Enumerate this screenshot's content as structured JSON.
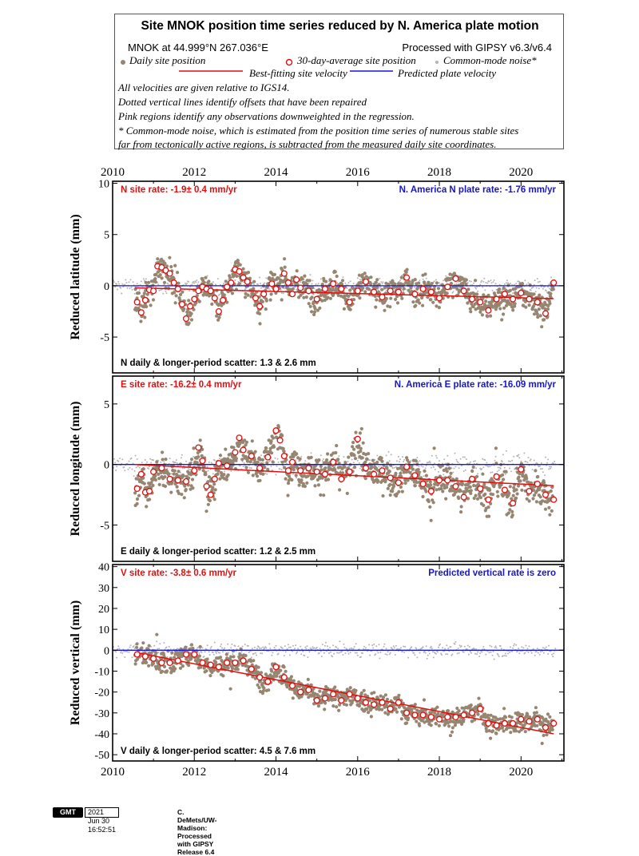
{
  "header": {
    "title": "Site MNOK position time series reduced by N. America plate motion",
    "site_line": "MNOK at 44.999°N 267.036°E",
    "processed_line": "Processed with GIPSY v6.3/v6.4",
    "legend_daily": "Daily site position",
    "legend_avg": "30-day-average site position",
    "legend_cm": "Common-mode noise*",
    "legend_best": "Best-fitting site velocity",
    "legend_pred": "Predicted plate velocity",
    "notes": [
      "All velocities are given relative to IGS14.",
      "Dotted vertical lines identify offsets that have been repaired",
      "Pink regions identify any observations downweighted in the regression.",
      "* Common-mode noise, which is estimated from the position time series of numerous stable sites",
      "far from tectonically active regions, is subtracted from the measured daily site coordinates."
    ]
  },
  "colors": {
    "daily": "#968671",
    "avg_fill": "#ffffff",
    "avg_stroke": "#e01010",
    "common_mode": "#b4b4b4",
    "best_fit": "#e01010",
    "predicted": "#1515e0",
    "site_rate_text": "#e01010",
    "plate_rate_text": "#1515d0"
  },
  "footer": {
    "logo": "GMT",
    "date": "2021 Jun 30 16:52:51",
    "credit": "C. DeMets/UW-Madison: Processed with GIPSY Release 6.4"
  },
  "chart_data": [
    {
      "type": "scatter",
      "component": "N",
      "ylabel": "Reduced latitude (mm)",
      "ylim": [
        -8.5,
        10.2
      ],
      "yticks": [
        10,
        5,
        0,
        -5
      ],
      "xlim": [
        2010,
        2021.05
      ],
      "xticks": [
        2010,
        2012,
        2014,
        2016,
        2018,
        2020
      ],
      "site_rate": "N site rate:  -1.9± 0.4 mm/yr",
      "plate_rate": "N. America N plate rate: -1.76 mm/yr",
      "scatter": "N daily & longer-period scatter:   1.3 &   2.6 mm",
      "data_start": 2010.55,
      "data_end": 2020.8,
      "best_fit": [
        [
          2010.55,
          -0.2
        ],
        [
          2020.8,
          -1.25
        ]
      ],
      "predicted": [
        [
          2010,
          0
        ],
        [
          2021.05,
          0
        ]
      ],
      "avg_30day": [
        [
          2010.6,
          -1.6
        ],
        [
          2010.7,
          -2.6
        ],
        [
          2010.8,
          -1.4
        ],
        [
          2010.9,
          -0.4
        ],
        [
          2011.0,
          -0.5
        ],
        [
          2011.1,
          1.9
        ],
        [
          2011.2,
          1.8
        ],
        [
          2011.3,
          1.5
        ],
        [
          2011.4,
          1.2
        ],
        [
          2011.5,
          0.3
        ],
        [
          2011.6,
          -0.3
        ],
        [
          2011.7,
          -1.8
        ],
        [
          2011.8,
          -3.2
        ],
        [
          2011.9,
          -2.0
        ],
        [
          2012.0,
          -1.3
        ],
        [
          2012.1,
          -0.5
        ],
        [
          2012.2,
          -0.1
        ],
        [
          2012.3,
          -0.3
        ],
        [
          2012.4,
          -0.5
        ],
        [
          2012.5,
          -1.2
        ],
        [
          2012.6,
          -2.5
        ],
        [
          2012.7,
          -1.4
        ],
        [
          2012.8,
          -0.1
        ],
        [
          2012.9,
          0.3
        ],
        [
          2013.0,
          1.6
        ],
        [
          2013.1,
          1.4
        ],
        [
          2013.2,
          0.8
        ],
        [
          2013.3,
          0.4
        ],
        [
          2013.5,
          -1.2
        ],
        [
          2013.6,
          -2.0
        ],
        [
          2013.7,
          -0.8
        ],
        [
          2013.9,
          0.2
        ],
        [
          2014.0,
          -0.3
        ],
        [
          2014.2,
          1.2
        ],
        [
          2014.3,
          0.3
        ],
        [
          2014.4,
          -0.8
        ],
        [
          2014.5,
          0.6
        ],
        [
          2014.6,
          -0.2
        ],
        [
          2014.8,
          -0.5
        ],
        [
          2015.0,
          -1.3
        ],
        [
          2015.2,
          -0.3
        ],
        [
          2015.4,
          0.2
        ],
        [
          2015.6,
          -0.3
        ],
        [
          2015.8,
          -1.6
        ],
        [
          2016.0,
          -0.5
        ],
        [
          2016.2,
          0.4
        ],
        [
          2016.4,
          -0.6
        ],
        [
          2016.6,
          -1.1
        ],
        [
          2016.8,
          -0.5
        ],
        [
          2017.0,
          -0.6
        ],
        [
          2017.2,
          0.8
        ],
        [
          2017.4,
          -0.8
        ],
        [
          2017.6,
          -0.3
        ],
        [
          2017.8,
          -0.6
        ],
        [
          2018.0,
          -1.2
        ],
        [
          2018.2,
          -0.1
        ],
        [
          2018.4,
          0.7
        ],
        [
          2018.6,
          -0.5
        ],
        [
          2018.8,
          -1.3
        ],
        [
          2019.0,
          -1.6
        ],
        [
          2019.2,
          -2.4
        ],
        [
          2019.4,
          -1.3
        ],
        [
          2019.6,
          -0.8
        ],
        [
          2019.8,
          -1.3
        ],
        [
          2020.0,
          -0.7
        ],
        [
          2020.2,
          -1.3
        ],
        [
          2020.4,
          -1.6
        ],
        [
          2020.6,
          -2.7
        ],
        [
          2020.8,
          0.3
        ]
      ]
    },
    {
      "type": "scatter",
      "component": "E",
      "ylabel": "Reduced longitude (mm)",
      "ylim": [
        -8.0,
        7.3
      ],
      "yticks": [
        5,
        0,
        -5
      ],
      "xlim": [
        2010,
        2021.05
      ],
      "xticks": [
        2010,
        2012,
        2014,
        2016,
        2018,
        2020
      ],
      "site_rate": "E site rate:  -16.2± 0.4 mm/yr",
      "plate_rate": "N. America E plate rate: -16.09 mm/yr",
      "scatter": "E daily & longer-period scatter:   1.2 &   2.5 mm",
      "data_start": 2010.55,
      "data_end": 2020.8,
      "best_fit": [
        [
          2010.55,
          0.0
        ],
        [
          2020.8,
          -1.75
        ]
      ],
      "predicted": [
        [
          2010,
          0
        ],
        [
          2021.05,
          0
        ]
      ],
      "avg_30day": [
        [
          2010.6,
          -2.0
        ],
        [
          2010.7,
          -0.8
        ],
        [
          2010.8,
          -2.3
        ],
        [
          2010.9,
          -2.2
        ],
        [
          2011.0,
          -0.6
        ],
        [
          2011.2,
          -0.3
        ],
        [
          2011.4,
          -1.2
        ],
        [
          2011.6,
          -1.3
        ],
        [
          2011.8,
          -1.4
        ],
        [
          2012.0,
          -0.5
        ],
        [
          2012.1,
          1.4
        ],
        [
          2012.2,
          0.3
        ],
        [
          2012.3,
          -1.8
        ],
        [
          2012.4,
          -2.5
        ],
        [
          2012.5,
          -1.2
        ],
        [
          2012.6,
          0.1
        ],
        [
          2012.8,
          -0.1
        ],
        [
          2013.0,
          1.0
        ],
        [
          2013.1,
          2.2
        ],
        [
          2013.2,
          1.2
        ],
        [
          2013.4,
          0.7
        ],
        [
          2013.6,
          -0.3
        ],
        [
          2013.8,
          0.6
        ],
        [
          2014.0,
          2.8
        ],
        [
          2014.1,
          2.0
        ],
        [
          2014.2,
          0.7
        ],
        [
          2014.3,
          -0.5
        ],
        [
          2014.4,
          0.2
        ],
        [
          2014.6,
          -0.5
        ],
        [
          2014.8,
          -0.3
        ],
        [
          2015.0,
          -0.6
        ],
        [
          2015.2,
          -0.8
        ],
        [
          2015.4,
          0.2
        ],
        [
          2015.6,
          -1.2
        ],
        [
          2015.8,
          -0.6
        ],
        [
          2016.0,
          2.1
        ],
        [
          2016.2,
          -0.3
        ],
        [
          2016.4,
          -0.8
        ],
        [
          2016.6,
          -0.5
        ],
        [
          2016.8,
          -1.1
        ],
        [
          2017.0,
          -1.5
        ],
        [
          2017.2,
          -0.2
        ],
        [
          2017.4,
          -0.9
        ],
        [
          2017.6,
          -1.6
        ],
        [
          2017.8,
          -2.2
        ],
        [
          2018.0,
          -1.3
        ],
        [
          2018.2,
          -1.3
        ],
        [
          2018.4,
          -1.8
        ],
        [
          2018.6,
          -2.7
        ],
        [
          2018.8,
          -1.2
        ],
        [
          2019.0,
          -2.0
        ],
        [
          2019.2,
          -2.9
        ],
        [
          2019.4,
          -1.0
        ],
        [
          2019.6,
          -2.1
        ],
        [
          2019.8,
          -3.2
        ],
        [
          2020.0,
          -0.4
        ],
        [
          2020.2,
          -2.2
        ],
        [
          2020.4,
          -1.6
        ],
        [
          2020.6,
          -2.5
        ],
        [
          2020.8,
          -2.9
        ]
      ]
    },
    {
      "type": "scatter",
      "component": "V",
      "ylabel": "Reduced vertical (mm)",
      "ylim": [
        -53,
        41
      ],
      "yticks": [
        40,
        30,
        20,
        10,
        0,
        -10,
        -20,
        -30,
        -40,
        -50
      ],
      "xlim": [
        2010,
        2021.05
      ],
      "xticks": [
        2010,
        2012,
        2014,
        2016,
        2018,
        2020
      ],
      "site_rate": "V site rate:  -3.8± 0.6 mm/yr",
      "plate_rate": "Predicted vertical rate is zero",
      "scatter": "V daily & longer-period scatter:   4.5 &   7.6 mm",
      "data_start": 2010.55,
      "data_end": 2020.8,
      "best_fit": [
        [
          2010.55,
          -1
        ],
        [
          2020.8,
          -40
        ]
      ],
      "predicted": [
        [
          2010,
          0
        ],
        [
          2021.05,
          0
        ]
      ],
      "avg_30day": [
        [
          2010.6,
          -2
        ],
        [
          2010.8,
          -3
        ],
        [
          2011.0,
          -4
        ],
        [
          2011.2,
          -6
        ],
        [
          2011.4,
          -6
        ],
        [
          2011.6,
          -5
        ],
        [
          2011.8,
          -2
        ],
        [
          2012.0,
          -2
        ],
        [
          2012.2,
          -6
        ],
        [
          2012.4,
          -7
        ],
        [
          2012.6,
          -8
        ],
        [
          2012.8,
          -6
        ],
        [
          2013.0,
          -6
        ],
        [
          2013.2,
          -5
        ],
        [
          2013.4,
          -9
        ],
        [
          2013.6,
          -13
        ],
        [
          2013.8,
          -15
        ],
        [
          2014.0,
          -8
        ],
        [
          2014.2,
          -13
        ],
        [
          2014.4,
          -17
        ],
        [
          2014.6,
          -20
        ],
        [
          2014.8,
          -19
        ],
        [
          2015.0,
          -24
        ],
        [
          2015.2,
          -23
        ],
        [
          2015.4,
          -21
        ],
        [
          2015.6,
          -24
        ],
        [
          2015.8,
          -21
        ],
        [
          2016.0,
          -23
        ],
        [
          2016.2,
          -25
        ],
        [
          2016.4,
          -26
        ],
        [
          2016.6,
          -25
        ],
        [
          2016.8,
          -28
        ],
        [
          2017.0,
          -25
        ],
        [
          2017.2,
          -30
        ],
        [
          2017.4,
          -31
        ],
        [
          2017.6,
          -31
        ],
        [
          2017.8,
          -32
        ],
        [
          2018.0,
          -33
        ],
        [
          2018.2,
          -32
        ],
        [
          2018.4,
          -32
        ],
        [
          2018.6,
          -31
        ],
        [
          2018.8,
          -30
        ],
        [
          2019.0,
          -28
        ],
        [
          2019.2,
          -35
        ],
        [
          2019.4,
          -36
        ],
        [
          2019.6,
          -35
        ],
        [
          2019.8,
          -35
        ],
        [
          2020.0,
          -33
        ],
        [
          2020.2,
          -34
        ],
        [
          2020.4,
          -33
        ],
        [
          2020.6,
          -37
        ],
        [
          2020.8,
          -35
        ]
      ]
    }
  ]
}
